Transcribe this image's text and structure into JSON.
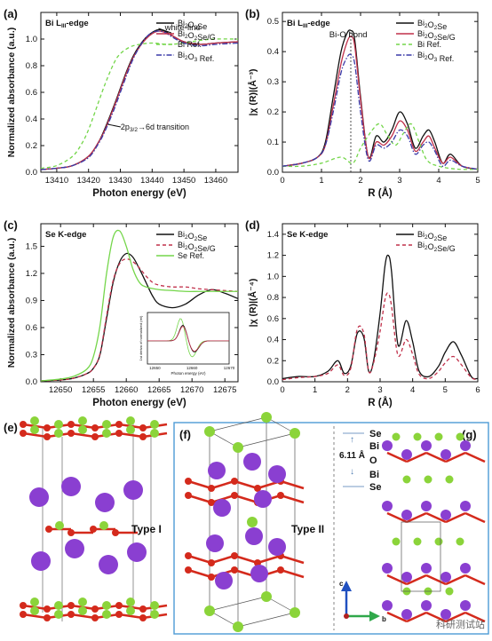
{
  "colors": {
    "black": "#111111",
    "pink": "#c0304a",
    "green": "#74d64a",
    "blue": "#3a3aa8",
    "purple": "#8a3fd1",
    "red_atom": "#d42a1c",
    "green_atom": "#8bd43a",
    "frame_blue": "#4d9bd6"
  },
  "chart_data": [
    {
      "id": "a",
      "type": "line",
      "panel_label": "(a)",
      "corner_text": "Bi L_III-edge",
      "xlabel": "Photon energy (eV)",
      "ylabel": "Normalized absorbance (a.u.)",
      "xlim": [
        13405,
        13467
      ],
      "ylim": [
        0,
        1.2
      ],
      "xticks": [
        13410,
        13420,
        13430,
        13440,
        13450,
        13460
      ],
      "yticks": [
        0.0,
        0.2,
        0.4,
        0.6,
        0.8,
        1.0
      ],
      "annotations": [
        "white-line",
        "2p3/2→6d transition"
      ],
      "legend": [
        "Bi2O2Se",
        "Bi2O2Se/G",
        "Bi Ref.",
        "Bi2O3 Ref."
      ],
      "series": [
        {
          "name": "Bi2O2Se",
          "color": "#111111",
          "dash": "",
          "x": [
            13405,
            13410,
            13415,
            13420,
            13423,
            13425,
            13428,
            13430,
            13432,
            13434,
            13436,
            13438,
            13440,
            13442,
            13444,
            13446,
            13450,
            13455,
            13460,
            13467
          ],
          "y": [
            0.02,
            0.03,
            0.05,
            0.12,
            0.22,
            0.32,
            0.5,
            0.63,
            0.76,
            0.87,
            0.95,
            1.01,
            1.05,
            1.07,
            1.06,
            1.03,
            0.98,
            0.96,
            0.97,
            0.98
          ]
        },
        {
          "name": "Bi2O2Se/G",
          "color": "#c0304a",
          "dash": "",
          "x": [
            13405,
            13410,
            13415,
            13420,
            13423,
            13425,
            13428,
            13430,
            13432,
            13434,
            13436,
            13438,
            13440,
            13442,
            13444,
            13446,
            13450,
            13455,
            13460,
            13467
          ],
          "y": [
            0.02,
            0.03,
            0.05,
            0.12,
            0.22,
            0.31,
            0.49,
            0.62,
            0.75,
            0.86,
            0.94,
            1.0,
            1.04,
            1.06,
            1.05,
            1.03,
            0.98,
            0.96,
            0.97,
            0.98
          ]
        },
        {
          "name": "Bi Ref.",
          "color": "#74d64a",
          "dash": "4,3",
          "x": [
            13405,
            13410,
            13415,
            13418,
            13420,
            13422,
            13425,
            13428,
            13430,
            13433,
            13436,
            13440,
            13445,
            13450,
            13455,
            13460,
            13467
          ],
          "y": [
            0.03,
            0.05,
            0.12,
            0.22,
            0.32,
            0.45,
            0.65,
            0.82,
            0.89,
            0.94,
            0.96,
            0.97,
            0.96,
            0.97,
            0.99,
            1.0,
            1.0
          ]
        },
        {
          "name": "Bi2O3 Ref.",
          "color": "#3a3aa8",
          "dash": "6,2,1.5,2",
          "x": [
            13405,
            13410,
            13415,
            13420,
            13423,
            13425,
            13428,
            13430,
            13432,
            13434,
            13436,
            13438,
            13440,
            13442,
            13444,
            13446,
            13450,
            13455,
            13460,
            13467
          ],
          "y": [
            0.02,
            0.03,
            0.05,
            0.11,
            0.21,
            0.3,
            0.47,
            0.6,
            0.73,
            0.85,
            0.94,
            1.01,
            1.05,
            1.06,
            1.05,
            1.02,
            0.97,
            0.95,
            0.96,
            0.97
          ]
        }
      ]
    },
    {
      "id": "b",
      "type": "line",
      "panel_label": "(b)",
      "corner_text": "Bi L_III-edge",
      "xlabel": "R (Å)",
      "ylabel": "|χ (R)|(Å⁻³)",
      "xlim": [
        0,
        5
      ],
      "ylim": [
        0,
        0.53
      ],
      "xticks": [
        0,
        1,
        2,
        3,
        4,
        5
      ],
      "yticks": [
        0.0,
        0.1,
        0.2,
        0.3,
        0.4,
        0.5
      ],
      "annotations": [
        "Bi-O bond"
      ],
      "marker_line_x": 1.75,
      "legend": [
        "Bi2O2Se",
        "Bi2O2Se/G",
        "Bi Ref.",
        "Bi2O3 Ref."
      ],
      "series": [
        {
          "name": "Bi2O2Se",
          "color": "#111111",
          "dash": "",
          "x": [
            0,
            0.5,
            0.9,
            1.1,
            1.3,
            1.5,
            1.65,
            1.75,
            1.85,
            2.0,
            2.2,
            2.4,
            2.6,
            2.8,
            3.0,
            3.2,
            3.4,
            3.6,
            3.75,
            3.9,
            4.1,
            4.3,
            4.6,
            5.0
          ],
          "y": [
            0.02,
            0.03,
            0.05,
            0.1,
            0.25,
            0.4,
            0.46,
            0.47,
            0.44,
            0.25,
            0.05,
            0.12,
            0.1,
            0.14,
            0.2,
            0.16,
            0.08,
            0.12,
            0.14,
            0.1,
            0.03,
            0.06,
            0.02,
            0.01
          ]
        },
        {
          "name": "Bi2O2Se/G",
          "color": "#c0304a",
          "dash": "",
          "x": [
            0,
            0.5,
            0.9,
            1.1,
            1.3,
            1.5,
            1.65,
            1.75,
            1.85,
            2.0,
            2.2,
            2.4,
            2.6,
            2.8,
            3.0,
            3.2,
            3.4,
            3.6,
            3.75,
            3.9,
            4.1,
            4.3,
            4.6,
            5.0
          ],
          "y": [
            0.02,
            0.03,
            0.05,
            0.09,
            0.22,
            0.36,
            0.43,
            0.45,
            0.42,
            0.24,
            0.05,
            0.1,
            0.09,
            0.12,
            0.17,
            0.14,
            0.07,
            0.1,
            0.12,
            0.08,
            0.03,
            0.05,
            0.02,
            0.01
          ]
        },
        {
          "name": "Bi Ref.",
          "color": "#74d64a",
          "dash": "4,3",
          "x": [
            0,
            0.5,
            1.0,
            1.5,
            1.8,
            2.0,
            2.3,
            2.5,
            2.7,
            2.9,
            3.1,
            3.3,
            3.5,
            3.7,
            4.0,
            4.5,
            5.0
          ],
          "y": [
            0.02,
            0.02,
            0.03,
            0.05,
            0.03,
            0.08,
            0.14,
            0.16,
            0.12,
            0.09,
            0.13,
            0.16,
            0.1,
            0.04,
            0.02,
            0.01,
            0.01
          ]
        },
        {
          "name": "Bi2O3 Ref.",
          "color": "#3a3aa8",
          "dash": "6,2,1.5,2",
          "x": [
            0,
            0.5,
            0.9,
            1.1,
            1.3,
            1.5,
            1.65,
            1.75,
            1.85,
            2.0,
            2.2,
            2.4,
            2.6,
            2.8,
            3.0,
            3.2,
            3.4,
            3.6,
            3.75,
            3.9,
            4.1,
            4.3,
            4.6,
            5.0
          ],
          "y": [
            0.02,
            0.03,
            0.05,
            0.09,
            0.2,
            0.33,
            0.38,
            0.39,
            0.36,
            0.2,
            0.04,
            0.09,
            0.08,
            0.1,
            0.14,
            0.12,
            0.06,
            0.09,
            0.1,
            0.07,
            0.02,
            0.04,
            0.02,
            0.01
          ]
        }
      ]
    },
    {
      "id": "c",
      "type": "line",
      "panel_label": "(c)",
      "corner_text": "Se K-edge",
      "xlabel": "Photon energy (eV)",
      "ylabel": "Normalized absorbance (a.u.)",
      "xlim": [
        12647,
        12677
      ],
      "ylim": [
        0,
        1.75
      ],
      "xticks": [
        12650,
        12655,
        12660,
        12665,
        12670,
        12675
      ],
      "yticks": [
        0.0,
        0.3,
        0.6,
        0.9,
        1.2,
        1.5
      ],
      "legend": [
        "Bi2O2Se",
        "Bi2O2Se/G",
        "Se Ref."
      ],
      "inset": {
        "xlabel": "Photon energy (eV)",
        "ylabel": "1st deriva of normalized (rel)",
        "xticks": [
          12650,
          12660,
          12670
        ],
        "xlim": [
          12648,
          12670
        ]
      },
      "series": [
        {
          "name": "Bi2O2Se",
          "color": "#111111",
          "dash": "",
          "x": [
            12647,
            12650,
            12652,
            12654,
            12655,
            12656,
            12657,
            12658,
            12659,
            12660,
            12661,
            12662,
            12663,
            12664,
            12665,
            12667,
            12669,
            12671,
            12673,
            12675,
            12677
          ],
          "y": [
            0.01,
            0.02,
            0.04,
            0.09,
            0.15,
            0.3,
            0.7,
            1.1,
            1.33,
            1.42,
            1.38,
            1.25,
            1.1,
            0.95,
            0.86,
            0.82,
            0.86,
            0.96,
            1.02,
            0.98,
            0.92
          ]
        },
        {
          "name": "Bi2O2Se/G",
          "color": "#c0304a",
          "dash": "4,3",
          "x": [
            12647,
            12650,
            12652,
            12654,
            12655,
            12656,
            12657,
            12658,
            12659,
            12660,
            12661,
            12662,
            12663,
            12664,
            12665,
            12667,
            12669,
            12671,
            12673,
            12675,
            12677
          ],
          "y": [
            0.01,
            0.02,
            0.04,
            0.09,
            0.15,
            0.31,
            0.73,
            1.12,
            1.31,
            1.36,
            1.33,
            1.26,
            1.17,
            1.1,
            1.07,
            1.05,
            1.05,
            1.03,
            1.02,
            1.01,
            1.0
          ]
        },
        {
          "name": "Se Ref.",
          "color": "#74d64a",
          "dash": "",
          "x": [
            12647,
            12650,
            12652,
            12654,
            12655,
            12656,
            12657,
            12658,
            12659,
            12660,
            12661,
            12662,
            12663,
            12665,
            12667,
            12669,
            12671,
            12673,
            12675,
            12677
          ],
          "y": [
            0.01,
            0.03,
            0.06,
            0.14,
            0.28,
            0.62,
            1.2,
            1.6,
            1.67,
            1.5,
            1.25,
            1.1,
            1.05,
            1.02,
            1.01,
            1.0,
            1.0,
            1.0,
            1.0,
            1.0
          ]
        }
      ]
    },
    {
      "id": "d",
      "type": "line",
      "panel_label": "(d)",
      "corner_text": "Se K-edge",
      "xlabel": "R (Å)",
      "ylabel": "|χ (R)|(Å⁻⁴)",
      "xlim": [
        0,
        6
      ],
      "ylim": [
        0,
        1.5
      ],
      "xticks": [
        0,
        1,
        2,
        3,
        4,
        5,
        6
      ],
      "yticks": [
        0.0,
        0.2,
        0.4,
        0.6,
        0.8,
        1.0,
        1.2,
        1.4
      ],
      "legend": [
        "Bi2O2Se",
        "Bi2O2Se/G"
      ],
      "series": [
        {
          "name": "Bi2O2Se",
          "color": "#111111",
          "dash": "",
          "x": [
            0,
            0.5,
            1.0,
            1.4,
            1.7,
            1.9,
            2.1,
            2.3,
            2.5,
            2.65,
            2.8,
            3.0,
            3.15,
            3.25,
            3.35,
            3.55,
            3.8,
            4.0,
            4.2,
            4.5,
            4.8,
            5.0,
            5.25,
            5.5,
            5.8,
            6.0
          ],
          "y": [
            0.03,
            0.05,
            0.05,
            0.1,
            0.2,
            0.08,
            0.15,
            0.46,
            0.42,
            0.1,
            0.2,
            0.65,
            1.1,
            1.2,
            1.05,
            0.35,
            0.58,
            0.38,
            0.1,
            0.05,
            0.15,
            0.28,
            0.38,
            0.25,
            0.05,
            0.03
          ]
        },
        {
          "name": "Bi2O2Se/G",
          "color": "#c0304a",
          "dash": "4,3",
          "x": [
            0,
            0.5,
            1.0,
            1.4,
            1.7,
            1.9,
            2.1,
            2.3,
            2.5,
            2.65,
            2.8,
            3.0,
            3.15,
            3.25,
            3.35,
            3.55,
            3.8,
            4.0,
            4.2,
            4.5,
            4.8,
            5.0,
            5.25,
            5.5,
            5.8,
            6.0
          ],
          "y": [
            0.02,
            0.04,
            0.05,
            0.08,
            0.16,
            0.06,
            0.13,
            0.5,
            0.46,
            0.1,
            0.18,
            0.48,
            0.78,
            0.84,
            0.72,
            0.25,
            0.4,
            0.26,
            0.07,
            0.03,
            0.1,
            0.18,
            0.24,
            0.16,
            0.04,
            0.02
          ]
        }
      ]
    }
  ],
  "structures": {
    "e": {
      "panel_label": "(e)",
      "type_label": "Type I"
    },
    "f": {
      "panel_label": "(f)",
      "type_label": "Type II"
    },
    "g": {
      "panel_label": "(g)"
    },
    "spacing": {
      "value": "6.11 Å",
      "layers": [
        "Se",
        "Bi",
        "O",
        "Bi",
        "Se"
      ]
    },
    "axes": {
      "c": "c",
      "b": "b"
    }
  },
  "watermark": "科研测试站"
}
